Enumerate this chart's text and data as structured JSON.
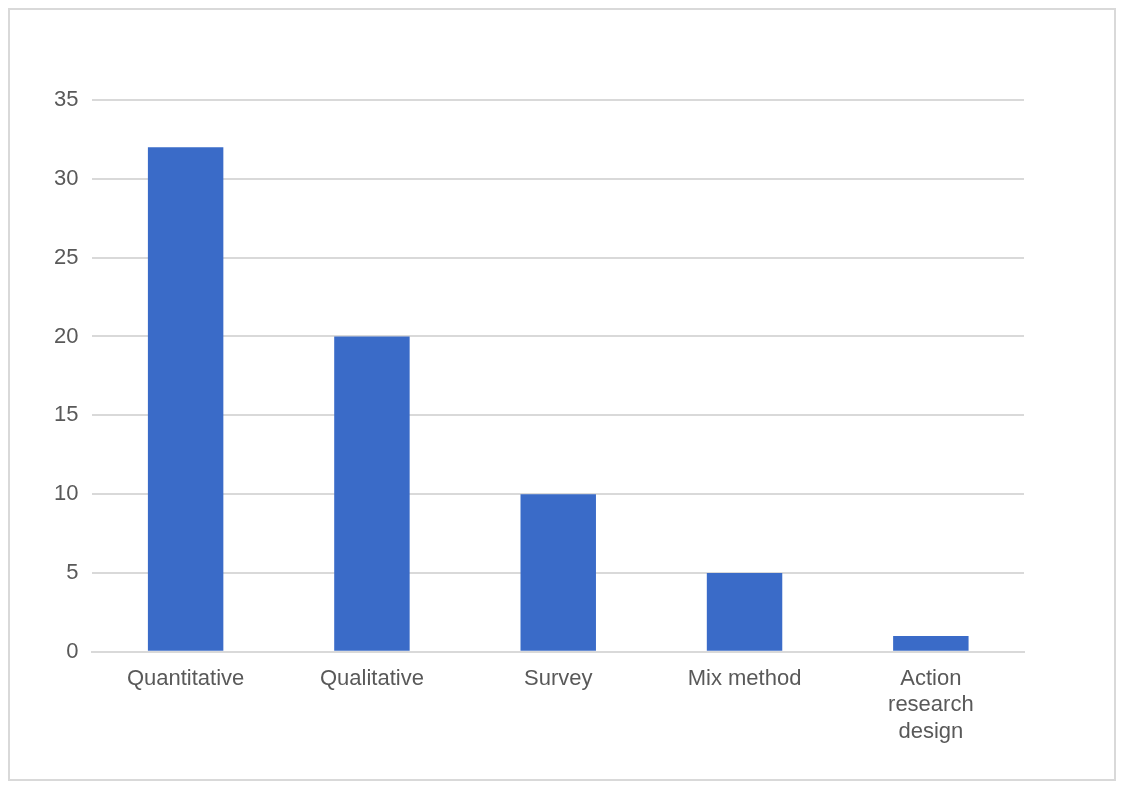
{
  "chart_data": {
    "type": "bar",
    "categories": [
      "Quantitative",
      "Qualitative",
      "Survey",
      "Mix method",
      "Action research design"
    ],
    "values": [
      32,
      20,
      10,
      5,
      1
    ],
    "color": "#3a6bc8",
    "ylim": [
      0,
      35
    ],
    "yticks": [
      0,
      5,
      10,
      15,
      20,
      25,
      30,
      35
    ],
    "grid": "y",
    "legend": false
  }
}
